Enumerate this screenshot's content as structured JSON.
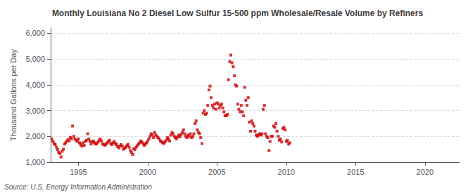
{
  "chart_data": {
    "type": "scatter",
    "title": "Monthly Louisiana No 2 Diesel Low Sulfur 15-500 ppm Wholesale/Resale Volume by Refiners",
    "ylabel": "Thousand Gallons per Day",
    "annotations": [
      "Source: U.S. Energy Information Administration"
    ],
    "color": "#cc0000",
    "marker": "square",
    "grid": true,
    "xlim": [
      1993.0,
      2022.5
    ],
    "ylim": [
      1000,
      6200
    ],
    "xticks": [
      1995,
      2000,
      2005,
      2010,
      2015,
      2020
    ],
    "yticks": [
      {
        "value": 1000,
        "label": "1,000"
      },
      {
        "value": 2000,
        "label": "2,000"
      },
      {
        "value": 3000,
        "label": "3,000"
      },
      {
        "value": 4000,
        "label": "4,000"
      },
      {
        "value": 5000,
        "label": "5,000"
      },
      {
        "value": 6000,
        "label": "6,000"
      }
    ],
    "x": [
      1993.08,
      1993.17,
      1993.25,
      1993.33,
      1993.42,
      1993.5,
      1993.58,
      1993.67,
      1993.75,
      1993.83,
      1993.92,
      1994.0,
      1994.08,
      1994.17,
      1994.25,
      1994.33,
      1994.42,
      1994.5,
      1994.58,
      1994.67,
      1994.75,
      1994.83,
      1994.92,
      1995.0,
      1995.08,
      1995.17,
      1995.25,
      1995.33,
      1995.42,
      1995.5,
      1995.58,
      1995.67,
      1995.75,
      1995.83,
      1995.92,
      1996.0,
      1996.08,
      1996.17,
      1996.25,
      1996.33,
      1996.42,
      1996.5,
      1996.58,
      1996.67,
      1996.75,
      1996.83,
      1996.92,
      1997.0,
      1997.08,
      1997.17,
      1997.25,
      1997.33,
      1997.42,
      1997.5,
      1997.58,
      1997.67,
      1997.75,
      1997.83,
      1997.92,
      1998.0,
      1998.08,
      1998.17,
      1998.25,
      1998.33,
      1998.42,
      1998.5,
      1998.58,
      1998.67,
      1998.75,
      1998.83,
      1998.92,
      1999.0,
      1999.08,
      1999.17,
      1999.25,
      1999.33,
      1999.42,
      1999.5,
      1999.58,
      1999.67,
      1999.75,
      1999.83,
      1999.92,
      2000.0,
      2000.08,
      2000.17,
      2000.25,
      2000.33,
      2000.42,
      2000.5,
      2000.58,
      2000.67,
      2000.75,
      2000.83,
      2000.92,
      2001.0,
      2001.08,
      2001.17,
      2001.25,
      2001.33,
      2001.42,
      2001.5,
      2001.58,
      2001.67,
      2001.75,
      2001.83,
      2001.92,
      2002.0,
      2002.08,
      2002.17,
      2002.25,
      2002.33,
      2002.42,
      2002.5,
      2002.58,
      2002.67,
      2002.75,
      2002.83,
      2002.92,
      2003.0,
      2003.08,
      2003.17,
      2003.25,
      2003.33,
      2003.42,
      2003.5,
      2003.58,
      2003.67,
      2003.75,
      2003.83,
      2003.92,
      2004.0,
      2004.08,
      2004.17,
      2004.25,
      2004.33,
      2004.42,
      2004.5,
      2004.58,
      2004.67,
      2004.75,
      2004.83,
      2004.92,
      2005.0,
      2005.08,
      2005.17,
      2005.25,
      2005.33,
      2005.42,
      2005.5,
      2005.58,
      2005.67,
      2005.75,
      2005.83,
      2005.92,
      2006.0,
      2006.08,
      2006.17,
      2006.25,
      2006.33,
      2006.42,
      2006.5,
      2006.58,
      2006.67,
      2006.75,
      2006.83,
      2006.92,
      2007.0,
      2007.08,
      2007.17,
      2007.25,
      2007.33,
      2007.42,
      2007.5,
      2007.58,
      2007.67,
      2007.75,
      2007.83,
      2007.92,
      2008.0,
      2008.08,
      2008.17,
      2008.25,
      2008.33,
      2008.42,
      2008.5,
      2008.58,
      2008.67,
      2008.75,
      2008.83,
      2008.92,
      2009.0,
      2009.08,
      2009.17,
      2009.25,
      2009.33,
      2009.42,
      2009.5,
      2009.58,
      2009.67,
      2009.75,
      2009.83,
      2009.92,
      2010.0,
      2010.08,
      2010.17,
      2010.25
    ],
    "values": [
      1900,
      1800,
      1720,
      1680,
      1580,
      1490,
      1380,
      1330,
      1200,
      1420,
      1500,
      1700,
      1750,
      1820,
      1880,
      1820,
      1960,
      1900,
      2400,
      2000,
      1900,
      1850,
      1800,
      1900,
      1750,
      1680,
      1620,
      1750,
      1650,
      1800,
      1850,
      2100,
      1900,
      1800,
      1700,
      1780,
      1820,
      1750,
      1700,
      1720,
      1780,
      1850,
      1900,
      1820,
      1700,
      1680,
      1650,
      1700,
      1750,
      1800,
      1850,
      1720,
      1680,
      1750,
      1800,
      1720,
      1680,
      1600,
      1550,
      1620,
      1680,
      1620,
      1500,
      1540,
      1580,
      1640,
      1690,
      1580,
      1450,
      1380,
      1300,
      1520,
      1480,
      1580,
      1640,
      1700,
      1750,
      1820,
      1780,
      1720,
      1650,
      1700,
      1750,
      1820,
      1900,
      2000,
      2100,
      2050,
      1950,
      2150,
      2050,
      2000,
      1950,
      1900,
      1820,
      1800,
      1750,
      1720,
      1780,
      1850,
      1950,
      1900,
      1820,
      2050,
      2150,
      2100,
      2000,
      1950,
      1900,
      1980,
      2050,
      1980,
      2080,
      2150,
      2250,
      2100,
      2000,
      1950,
      2050,
      2000,
      2100,
      1950,
      2000,
      2100,
      2500,
      2600,
      2250,
      2150,
      2100,
      1950,
      1720,
      2900,
      3000,
      2850,
      2900,
      3200,
      3800,
      3950,
      3500,
      3200,
      3100,
      3250,
      3050,
      3300,
      3250,
      3100,
      3200,
      3250,
      3100,
      2950,
      2800,
      2800,
      2850,
      4200,
      4900,
      5150,
      4850,
      4700,
      4350,
      4000,
      3950,
      3250,
      3050,
      2950,
      3200,
      2950,
      2800,
      3900,
      3400,
      3200,
      3500,
      2550,
      2200,
      2600,
      2500,
      2400,
      2200,
      2050,
      2000,
      2050,
      2100,
      2050,
      2100,
      3050,
      3200,
      2100,
      2000,
      1950,
      1450,
      1800,
      2000,
      2000,
      2400,
      2350,
      2500,
      2200,
      2000,
      1850,
      1900,
      1780,
      2300,
      2350,
      2250,
      1800,
      1850,
      1700,
      1750
    ]
  }
}
